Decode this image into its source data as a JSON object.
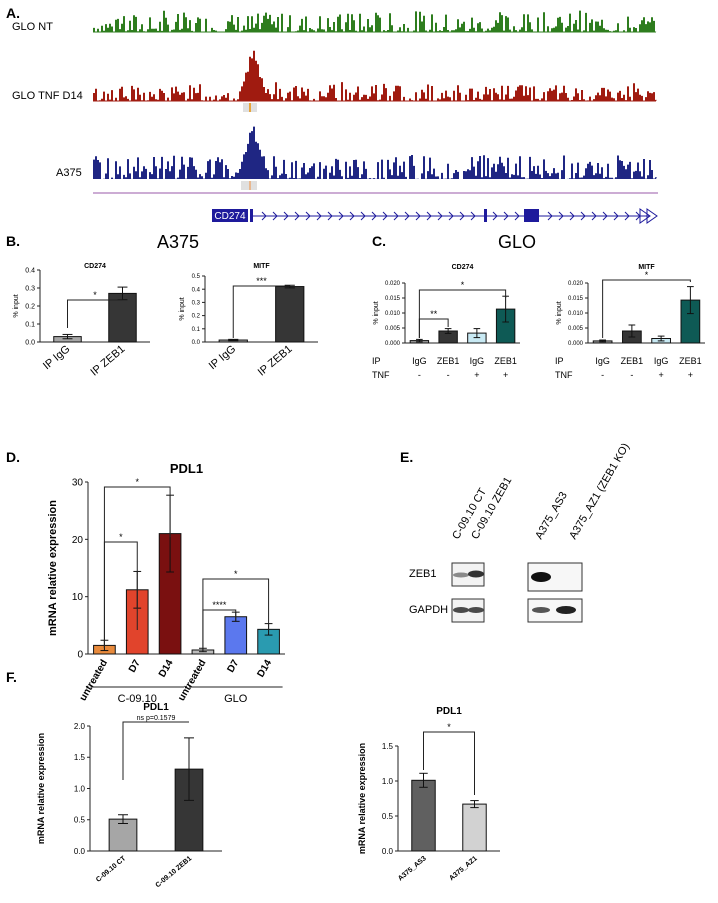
{
  "figure": {
    "panel_labels": {
      "A": "A.",
      "B": "B.",
      "C": "C.",
      "D": "D.",
      "E": "E.",
      "F": "F."
    }
  },
  "panelA": {
    "tracks": [
      {
        "label": "GLO NT",
        "color": "#2e7d1e"
      },
      {
        "label": "GLO TNF D14",
        "color": "#a01b10"
      },
      {
        "label": "A375",
        "color": "#1f2683"
      }
    ],
    "gene_label": "CD274",
    "gene_color": "#1e1a9c"
  },
  "panelB": {
    "title": "A375"
  },
  "panelC": {
    "title": "GLO",
    "ip_row_label": "IP",
    "tnf_row_label": "TNF"
  },
  "panelE": {
    "left_lanes": [
      "C-09.10 CT",
      "C-09.10 ZEB1"
    ],
    "right_lanes": [
      "A375_AS3",
      "A375_AZ1 (ZEB1 KO)"
    ],
    "rows": [
      "ZEB1",
      "GAPDH"
    ]
  },
  "chart_data": [
    {
      "id": "B1",
      "type": "bar",
      "title": "CD274",
      "ylabel": "% input",
      "categories": [
        "IP IgG",
        "IP ZEB1"
      ],
      "values": [
        0.03,
        0.27
      ],
      "errors": [
        0.012,
        0.035
      ],
      "colors": [
        "#a6a6a6",
        "#363636"
      ],
      "ylim": [
        0,
        0.4
      ],
      "yticks": [
        "0.0",
        "0.1",
        "0.2",
        "0.3",
        "0.4"
      ],
      "significance": [
        {
          "from": 0,
          "to": 1,
          "label": "*"
        }
      ]
    },
    {
      "id": "B2",
      "type": "bar",
      "title": "MITF",
      "ylabel": "% input",
      "categories": [
        "IP IgG",
        "IP ZEB1"
      ],
      "values": [
        0.015,
        0.42
      ],
      "errors": [
        0.005,
        0.01
      ],
      "colors": [
        "#a6a6a6",
        "#363636"
      ],
      "ylim": [
        0,
        0.5
      ],
      "yticks": [
        "0.0",
        "0.1",
        "0.2",
        "0.3",
        "0.4",
        "0.5"
      ],
      "significance": [
        {
          "from": 0,
          "to": 1,
          "label": "***"
        }
      ]
    },
    {
      "id": "C1",
      "type": "bar",
      "title": "CD274",
      "ylabel": "% input",
      "categories": [
        "IgG",
        "ZEB1",
        "IgG",
        "ZEB1"
      ],
      "tnf": [
        "-",
        "-",
        "+",
        "+"
      ],
      "values": [
        0.0008,
        0.004,
        0.0033,
        0.0113
      ],
      "errors": [
        0.0004,
        0.0008,
        0.0015,
        0.0043
      ],
      "colors": [
        "#9e9e9e",
        "#353535",
        "#c8e9f3",
        "#0e5a55"
      ],
      "ylim": [
        0,
        0.02
      ],
      "yticks": [
        "0.000",
        "0.005",
        "0.010",
        "0.015",
        "0.020"
      ],
      "significance": [
        {
          "from": 0,
          "to": 1,
          "label": "**"
        },
        {
          "from": 0,
          "to": 3,
          "label": "*"
        }
      ]
    },
    {
      "id": "C2",
      "type": "bar",
      "title": "MITF",
      "ylabel": "% input",
      "categories": [
        "IgG",
        "ZEB1",
        "IgG",
        "ZEB1"
      ],
      "tnf": [
        "-",
        "-",
        "+",
        "+"
      ],
      "values": [
        0.0007,
        0.004,
        0.0015,
        0.0143
      ],
      "errors": [
        0.0003,
        0.002,
        0.0008,
        0.0045
      ],
      "colors": [
        "#9e9e9e",
        "#353535",
        "#c8e9f3",
        "#0e5a55"
      ],
      "ylim": [
        0,
        0.02
      ],
      "yticks": [
        "0.000",
        "0.005",
        "0.010",
        "0.015",
        "0.020"
      ],
      "significance": [
        {
          "from": 0,
          "to": 3,
          "label": "*"
        }
      ]
    },
    {
      "id": "D",
      "type": "bar",
      "title": "PDL1",
      "ylabel": "mRNA relative expression",
      "categories": [
        "untreated",
        "D7",
        "D14",
        "untreated",
        "D7",
        "D14"
      ],
      "groups": [
        {
          "label": "C-09.10",
          "from": 0,
          "to": 2
        },
        {
          "label": "GLO",
          "from": 3,
          "to": 5
        }
      ],
      "values": [
        1.5,
        11.2,
        21.0,
        0.7,
        6.5,
        4.3
      ],
      "errors": [
        0.9,
        3.2,
        6.7,
        0.3,
        0.8,
        1.0
      ],
      "colors": [
        "#e88a3c",
        "#e1442c",
        "#7a1010",
        "#bdbdbd",
        "#5b78ee",
        "#2a9bb0"
      ],
      "ylim": [
        0,
        30
      ],
      "yticks": [
        "0",
        "10",
        "20",
        "30"
      ],
      "significance": [
        {
          "from": 0,
          "to": 1,
          "label": "*"
        },
        {
          "from": 0,
          "to": 2,
          "label": "*"
        },
        {
          "from": 3,
          "to": 4,
          "label": "****"
        },
        {
          "from": 3,
          "to": 5,
          "label": "*"
        }
      ]
    },
    {
      "id": "F1",
      "type": "bar",
      "title": "PDL1",
      "ylabel": "mRNA relative expression",
      "categories": [
        "C-09.10 CT",
        "C-09.10 ZEB1"
      ],
      "values": [
        0.51,
        1.31
      ],
      "errors": [
        0.07,
        0.5
      ],
      "colors": [
        "#a6a6a6",
        "#363636"
      ],
      "ylim": [
        0,
        2.0
      ],
      "yticks": [
        "0.0",
        "0.5",
        "1.0",
        "1.5",
        "2.0"
      ],
      "significance": [
        {
          "from": 0,
          "to": 1,
          "label": "ns p=0.1579"
        }
      ]
    },
    {
      "id": "F2",
      "type": "bar",
      "title": "PDL1",
      "ylabel": "mRNA relative expression",
      "categories": [
        "A375_AS3",
        "A375_AZ1"
      ],
      "values": [
        1.01,
        0.67
      ],
      "errors": [
        0.1,
        0.05
      ],
      "colors": [
        "#606060",
        "#d2d2d2"
      ],
      "ylim": [
        0,
        1.5
      ],
      "yticks": [
        "0.0",
        "0.5",
        "1.0",
        "1.5"
      ],
      "significance": [
        {
          "from": 0,
          "to": 1,
          "label": "*"
        }
      ]
    }
  ]
}
